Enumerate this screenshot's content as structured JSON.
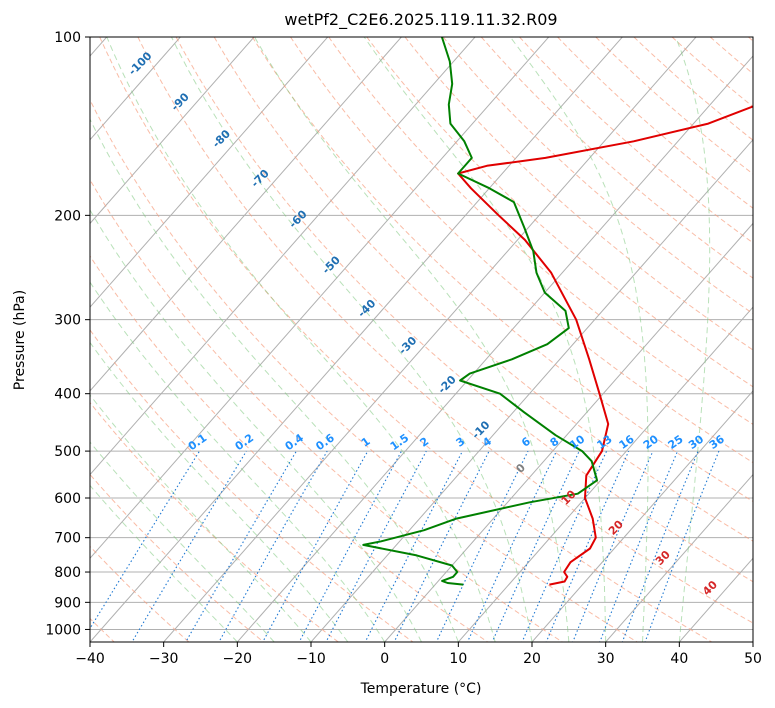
{
  "chart_data": {
    "type": "line",
    "title": "wetPf2_C2E6.2025.119.11.32.R09",
    "xlabel": "Temperature (°C)",
    "ylabel": "Pressure (hPa)",
    "xlim": [
      -40,
      50
    ],
    "ylim": [
      1050,
      100
    ],
    "y_scale": "log",
    "grid": true,
    "x_ticks": [
      -40,
      -30,
      -20,
      -10,
      0,
      10,
      20,
      30,
      40,
      50
    ],
    "y_ticks": [
      100,
      200,
      300,
      400,
      500,
      600,
      700,
      800,
      900,
      1000
    ],
    "series": [
      {
        "color": "#e00000",
        "points": [
          {
            "p": 840,
            "t": 15.5
          },
          {
            "p": 830,
            "t": 17.2
          },
          {
            "p": 815,
            "t": 17.0
          },
          {
            "p": 800,
            "t": 16.0
          },
          {
            "p": 770,
            "t": 15.7
          },
          {
            "p": 730,
            "t": 16.7
          },
          {
            "p": 700,
            "t": 16.2
          },
          {
            "p": 650,
            "t": 13.5
          },
          {
            "p": 600,
            "t": 10.0
          },
          {
            "p": 550,
            "t": 7.5
          },
          {
            "p": 500,
            "t": 6.7
          },
          {
            "p": 450,
            "t": 4.3
          },
          {
            "p": 400,
            "t": -0.5
          },
          {
            "p": 350,
            "t": -6.0
          },
          {
            "p": 300,
            "t": -12.5
          },
          {
            "p": 250,
            "t": -21.5
          },
          {
            "p": 220,
            "t": -29.0
          },
          {
            "p": 200,
            "t": -35.5
          },
          {
            "p": 180,
            "t": -42.5
          },
          {
            "p": 170,
            "t": -46.0
          },
          {
            "p": 165,
            "t": -43.0
          },
          {
            "p": 160,
            "t": -36.0
          },
          {
            "p": 150,
            "t": -26.0
          },
          {
            "p": 140,
            "t": -18.0
          },
          {
            "p": 130,
            "t": -13.5
          },
          {
            "p": 120,
            "t": -8.5
          },
          {
            "p": 110,
            "t": -5.0
          },
          {
            "p": 100,
            "t": -1.5
          }
        ]
      },
      {
        "color": "#008000",
        "points": [
          {
            "p": 840,
            "t": 3.8
          },
          {
            "p": 835,
            "t": 1.5
          },
          {
            "p": 828,
            "t": 0.5
          },
          {
            "p": 815,
            "t": 1.5
          },
          {
            "p": 800,
            "t": 1.5
          },
          {
            "p": 780,
            "t": 0.0
          },
          {
            "p": 750,
            "t": -6.0
          },
          {
            "p": 720,
            "t": -14.5
          },
          {
            "p": 710,
            "t": -12.5
          },
          {
            "p": 680,
            "t": -8.0
          },
          {
            "p": 650,
            "t": -5.0
          },
          {
            "p": 610,
            "t": 3.0
          },
          {
            "p": 590,
            "t": 8.5
          },
          {
            "p": 560,
            "t": 9.5
          },
          {
            "p": 520,
            "t": 6.5
          },
          {
            "p": 500,
            "t": 4.0
          },
          {
            "p": 470,
            "t": -1.5
          },
          {
            "p": 430,
            "t": -8.5
          },
          {
            "p": 400,
            "t": -14.0
          },
          {
            "p": 380,
            "t": -21.0
          },
          {
            "p": 370,
            "t": -20.5
          },
          {
            "p": 350,
            "t": -16.5
          },
          {
            "p": 330,
            "t": -13.5
          },
          {
            "p": 310,
            "t": -12.5
          },
          {
            "p": 290,
            "t": -15.0
          },
          {
            "p": 270,
            "t": -20.0
          },
          {
            "p": 250,
            "t": -23.5
          },
          {
            "p": 230,
            "t": -26.5
          },
          {
            "p": 210,
            "t": -30.5
          },
          {
            "p": 190,
            "t": -35.0
          },
          {
            "p": 180,
            "t": -40.0
          },
          {
            "p": 170,
            "t": -46.0
          },
          {
            "p": 160,
            "t": -46.0
          },
          {
            "p": 150,
            "t": -49.0
          },
          {
            "p": 140,
            "t": -53.0
          },
          {
            "p": 130,
            "t": -55.5
          },
          {
            "p": 120,
            "t": -57.5
          },
          {
            "p": 110,
            "t": -60.5
          },
          {
            "p": 100,
            "t": -64.5
          }
        ]
      }
    ],
    "dry_adiabat_labels": [
      -100,
      -90,
      -80,
      -70,
      -60,
      -50,
      -40,
      -30,
      -20,
      -10,
      0,
      10,
      20,
      30,
      40
    ],
    "mixing_ratio_labels": [
      "0.1",
      "0.2",
      "0.4",
      "0.6",
      "1",
      "1.5",
      "2",
      "3",
      "4",
      "6",
      "8",
      "10",
      "13",
      "16",
      "20",
      "25",
      "30",
      "36"
    ]
  }
}
